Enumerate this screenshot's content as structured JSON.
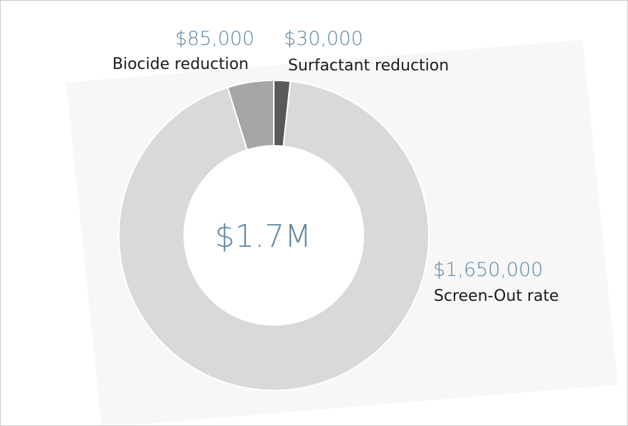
{
  "chart_data": {
    "type": "pie",
    "donut": true,
    "center_label": "$1.7M",
    "slices": [
      {
        "name": "Screen-Out rate",
        "value": 1650000,
        "value_label": "$1,650,000",
        "color": "#d9d9d9"
      },
      {
        "name": "Biocide reduction",
        "value": 85000,
        "value_label": "$85,000",
        "color": "#a6a6a6"
      },
      {
        "name": "Surfactant reduction",
        "value": 30000,
        "value_label": "$30,000",
        "color": "#595959"
      }
    ]
  }
}
